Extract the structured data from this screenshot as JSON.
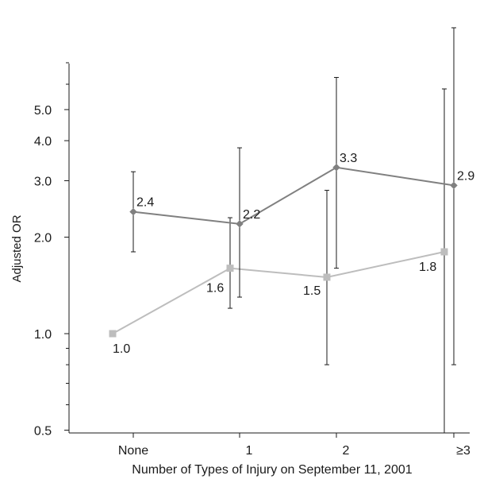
{
  "chart_data": {
    "type": "line",
    "xlabel": "Number of Types of Injury on September 11, 2001",
    "ylabel": "Adjusted OR",
    "y_scale": "log",
    "ylim": [
      0.5,
      7.0
    ],
    "y_ticks": [
      {
        "value": 0.5,
        "label": "0.5"
      },
      {
        "value": 1.0,
        "label": "1.0"
      },
      {
        "value": 2.0,
        "label": "2.0"
      },
      {
        "value": 3.0,
        "label": "3.0"
      },
      {
        "value": 4.0,
        "label": "4.0"
      },
      {
        "value": 5.0,
        "label": "5.0"
      }
    ],
    "y_minor_ticks": [
      0.6,
      0.7,
      0.8,
      0.9,
      6.0,
      7.0
    ],
    "categories": [
      "None",
      "1",
      "2",
      "≥3"
    ],
    "grid": false,
    "legend": "none",
    "series": [
      {
        "marker": "diamond",
        "color": "#808080",
        "values": [
          2.4,
          2.2,
          3.3,
          2.9
        ],
        "ci_lower": [
          1.8,
          1.3,
          1.6,
          0.8
        ],
        "ci_upper": [
          3.2,
          3.8,
          6.3,
          9.0
        ],
        "labels": [
          "2.4",
          "2.2",
          "3.3",
          "2.9"
        ]
      },
      {
        "marker": "square",
        "color": "#bdbdbd",
        "values": [
          1.0,
          1.6,
          1.5,
          1.8
        ],
        "ci_lower": [
          null,
          1.2,
          0.8,
          0.45
        ],
        "ci_upper": [
          null,
          2.3,
          2.8,
          5.8
        ],
        "labels": [
          "1.0",
          "1.6",
          "1.5",
          "1.8"
        ]
      }
    ]
  }
}
